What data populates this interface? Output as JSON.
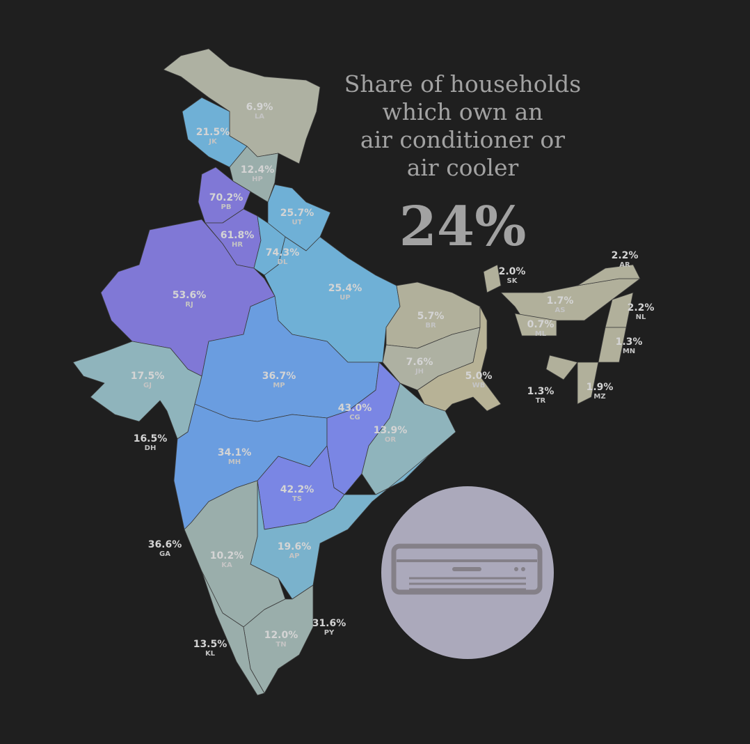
{
  "title_lines": [
    "Share of households",
    "which own an",
    "air conditioner or",
    "air cooler"
  ],
  "headline": "24%",
  "regions": [
    {
      "code": "LA",
      "value": "6.9%",
      "color": "#aeb1a2"
    },
    {
      "code": "JK",
      "value": "21.5%",
      "color": "#6fb0d6"
    },
    {
      "code": "HP",
      "value": "12.4%",
      "color": "#9aaeab"
    },
    {
      "code": "PB",
      "value": "70.2%",
      "color": "#8078d6"
    },
    {
      "code": "HR",
      "value": "61.8%",
      "color": "#8078d6"
    },
    {
      "code": "UT",
      "value": "25.7%",
      "color": "#6fb0d6"
    },
    {
      "code": "DL",
      "value": "74.3%",
      "color": "#6fb0d6"
    },
    {
      "code": "RJ",
      "value": "53.6%",
      "color": "#8078d6"
    },
    {
      "code": "UP",
      "value": "25.4%",
      "color": "#6fb0d6"
    },
    {
      "code": "GJ",
      "value": "17.5%",
      "color": "#8fb4bc"
    },
    {
      "code": "MP",
      "value": "36.7%",
      "color": "#6a9de0"
    },
    {
      "code": "MH",
      "value": "34.1%",
      "color": "#6a9de0"
    },
    {
      "code": "CG",
      "value": "43.0%",
      "color": "#7a86e4"
    },
    {
      "code": "TS",
      "value": "42.2%",
      "color": "#7a86e4"
    },
    {
      "code": "OR",
      "value": "13.9%",
      "color": "#8fb4bc"
    },
    {
      "code": "AP",
      "value": "19.6%",
      "color": "#7ab2cc"
    },
    {
      "code": "KA",
      "value": "10.2%",
      "color": "#9aaeab"
    },
    {
      "code": "TN",
      "value": "12.0%",
      "color": "#9aaeab"
    },
    {
      "code": "KL",
      "value": "13.5%",
      "color": "#9aaeab"
    },
    {
      "code": "BR",
      "value": "5.7%",
      "color": "#b1b09b"
    },
    {
      "code": "JH",
      "value": "7.6%",
      "color": "#aeb1a2"
    },
    {
      "code": "WB",
      "value": "5.0%",
      "color": "#b7b296"
    },
    {
      "code": "SK",
      "value": "2.0%",
      "color": "#b1b09b"
    },
    {
      "code": "AS",
      "value": "1.7%",
      "color": "#b1b09b"
    },
    {
      "code": "AR",
      "value": "2.2%",
      "color": "#b1b09b"
    },
    {
      "code": "NL",
      "value": "2.2%",
      "color": "#b1b09b"
    },
    {
      "code": "ML",
      "value": "0.7%",
      "color": "#b1b09b"
    },
    {
      "code": "MN",
      "value": "1.3%",
      "color": "#b1b09b"
    },
    {
      "code": "MZ",
      "value": "1.9%",
      "color": "#b1b09b"
    },
    {
      "code": "TR",
      "value": "1.3%",
      "color": "#b1b09b"
    },
    {
      "code": "GA",
      "value": "36.6%",
      "color": "#7ab2cc"
    },
    {
      "code": "DH",
      "value": "16.5%",
      "color": "#7ab2cc"
    },
    {
      "code": "PY",
      "value": "31.6%",
      "color": "#7ab2cc"
    }
  ]
}
